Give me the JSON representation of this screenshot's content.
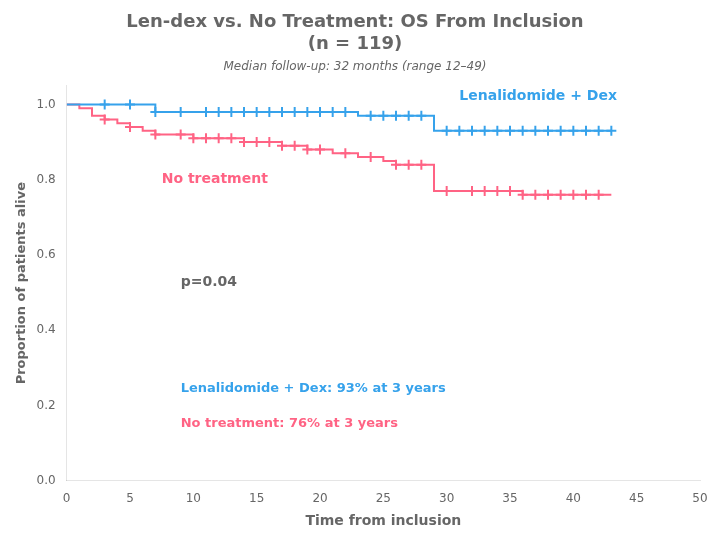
{
  "chart_data": {
    "type": "line",
    "line_style": "step",
    "title": [
      "Len-dex vs. No Treatment: OS From Inclusion",
      "(n = 119)"
    ],
    "subtitle": "Median follow-up: 32 months (range 12–49)",
    "xlabel": "Time from inclusion",
    "ylabel": "Proportion of patients alive",
    "grid": false,
    "xlim": [
      0,
      50
    ],
    "ylim": [
      0.0,
      1.05
    ],
    "xticks": [
      0,
      5,
      10,
      15,
      20,
      25,
      30,
      35,
      40,
      45,
      50
    ],
    "yticks": [
      {
        "value": 0.0,
        "label": "0.0"
      },
      0.2,
      0.4,
      0.6,
      0.8,
      {
        "value": 1.0,
        "label": "1.0"
      }
    ],
    "series": [
      {
        "name": "Lenalidomide + Dex",
        "x": [
          0,
          1,
          2,
          3,
          4,
          5,
          6,
          7,
          8,
          9,
          10,
          11,
          12,
          13,
          14,
          15,
          16,
          17,
          18,
          19,
          20,
          21,
          22,
          23,
          24,
          25,
          26,
          27,
          28,
          29,
          30,
          31,
          32,
          33,
          34,
          35,
          36,
          37,
          38,
          39,
          40,
          41,
          42,
          43
        ],
        "values": [
          1.0,
          1.0,
          1.0,
          1.0,
          1.0,
          1.0,
          1.0,
          0.98,
          0.98,
          0.98,
          0.98,
          0.98,
          0.98,
          0.98,
          0.98,
          0.98,
          0.98,
          0.98,
          0.98,
          0.98,
          0.98,
          0.98,
          0.98,
          0.97,
          0.97,
          0.97,
          0.97,
          0.97,
          0.97,
          0.93,
          0.93,
          0.93,
          0.93,
          0.93,
          0.93,
          0.93,
          0.93,
          0.93,
          0.93,
          0.93,
          0.93,
          0.93,
          0.93,
          0.93
        ],
        "censors_x": [
          3,
          5,
          7,
          9,
          11,
          12,
          13,
          14,
          15,
          16,
          17,
          18,
          19,
          20,
          21,
          22,
          24,
          25,
          26,
          27,
          28,
          30,
          31,
          32,
          33,
          34,
          35,
          36,
          37,
          38,
          39,
          40,
          41,
          42,
          43
        ],
        "censors_values": [
          1.0,
          1.0,
          0.98,
          0.98,
          0.98,
          0.98,
          0.98,
          0.98,
          0.98,
          0.98,
          0.98,
          0.98,
          0.98,
          0.98,
          0.98,
          0.98,
          0.97,
          0.97,
          0.97,
          0.97,
          0.97,
          0.93,
          0.93,
          0.93,
          0.93,
          0.93,
          0.93,
          0.93,
          0.93,
          0.93,
          0.93,
          0.93,
          0.93,
          0.93,
          0.93
        ]
      },
      {
        "name": "No treatment",
        "x": [
          0,
          1,
          2,
          3,
          4,
          5,
          6,
          7,
          8,
          9,
          10,
          11,
          12,
          13,
          14,
          15,
          16,
          17,
          18,
          19,
          20,
          21,
          22,
          23,
          24,
          25,
          26,
          27,
          28,
          29,
          30,
          31,
          32,
          33,
          34,
          35,
          36,
          37,
          38,
          39,
          40,
          41,
          42,
          43
        ],
        "values": [
          1.0,
          0.99,
          0.97,
          0.96,
          0.95,
          0.94,
          0.93,
          0.92,
          0.92,
          0.92,
          0.91,
          0.91,
          0.91,
          0.91,
          0.9,
          0.9,
          0.9,
          0.89,
          0.89,
          0.88,
          0.88,
          0.87,
          0.87,
          0.86,
          0.86,
          0.85,
          0.84,
          0.84,
          0.84,
          0.77,
          0.77,
          0.77,
          0.77,
          0.77,
          0.77,
          0.77,
          0.76,
          0.76,
          0.76,
          0.76,
          0.76,
          0.76,
          0.76,
          0.76
        ],
        "censors_x": [
          3,
          5,
          7,
          9,
          10,
          11,
          12,
          13,
          14,
          15,
          16,
          17,
          18,
          19,
          20,
          22,
          24,
          26,
          27,
          28,
          30,
          32,
          33,
          34,
          35,
          36,
          37,
          38,
          39,
          40,
          41,
          42
        ],
        "censors_values": [
          0.96,
          0.94,
          0.92,
          0.92,
          0.91,
          0.91,
          0.91,
          0.91,
          0.9,
          0.9,
          0.9,
          0.89,
          0.89,
          0.88,
          0.88,
          0.87,
          0.86,
          0.84,
          0.84,
          0.84,
          0.77,
          0.77,
          0.77,
          0.77,
          0.77,
          0.76,
          0.76,
          0.76,
          0.76,
          0.76,
          0.76,
          0.76
        ]
      }
    ],
    "annotations": [
      {
        "text": "p=0.04"
      },
      {
        "text": "Lenalidomide + Dex: 93% at 3 years"
      },
      {
        "text": "No treatment: 76% at 3 years"
      }
    ]
  }
}
